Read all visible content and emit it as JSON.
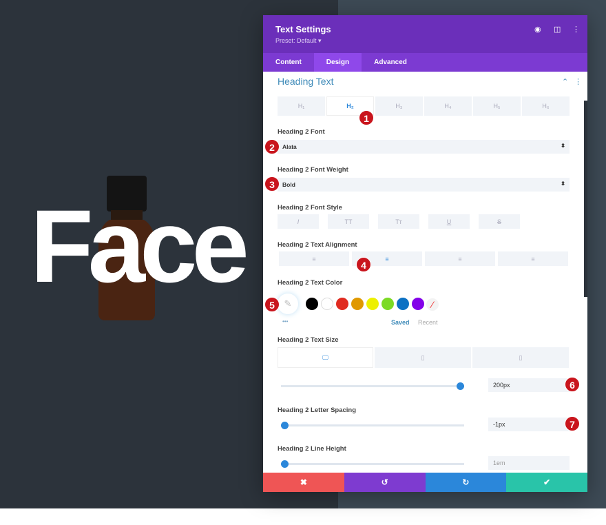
{
  "canvas": {
    "heading_text": "Face"
  },
  "panel": {
    "title": "Text Settings",
    "preset": "Preset: Default ▾",
    "tabs": [
      "Content",
      "Design",
      "Advanced"
    ],
    "active_tab": "Design",
    "section": "Heading Text",
    "heading_levels": [
      "H₁",
      "H₂",
      "H₃",
      "H₄",
      "H₅",
      "H₆"
    ],
    "active_level": "H₂",
    "font_label": "Heading 2 Font",
    "font_value": "Alata",
    "weight_label": "Heading 2 Font Weight",
    "weight_value": "Bold",
    "style_label": "Heading 2 Font Style",
    "styles": [
      "I",
      "TT",
      "Tт",
      "U",
      "S"
    ],
    "align_label": "Heading 2 Text Alignment",
    "align_icons": [
      "≡",
      "≡",
      "≡",
      "≡"
    ],
    "color_label": "Heading 2 Text Color",
    "swatches": [
      "#000000",
      "#ffffff",
      "#e02b20",
      "#e09900",
      "#edf000",
      "#7cda24",
      "#0c71c3",
      "#8300e9"
    ],
    "saved": "Saved",
    "recent": "Recent",
    "more": "•••",
    "size_label": "Heading 2 Text Size",
    "size_value": "200px",
    "size_fraction": 1.0,
    "spacing_label": "Heading 2 Letter Spacing",
    "spacing_value": "-1px",
    "spacing_fraction": 0,
    "line_label": "Heading 2 Line Height",
    "line_value": "1em",
    "line_fraction": 0,
    "footer": {
      "cancel": "✖",
      "undo": "↺",
      "redo": "↻",
      "save": "✔"
    },
    "colors": {
      "header": "#6b2fba",
      "cancel": "#ef5555",
      "undo": "#7e3bd0",
      "redo": "#2b87da",
      "save": "#29c4a9"
    }
  },
  "badges": [
    "1",
    "2",
    "3",
    "4",
    "5",
    "6",
    "7"
  ]
}
